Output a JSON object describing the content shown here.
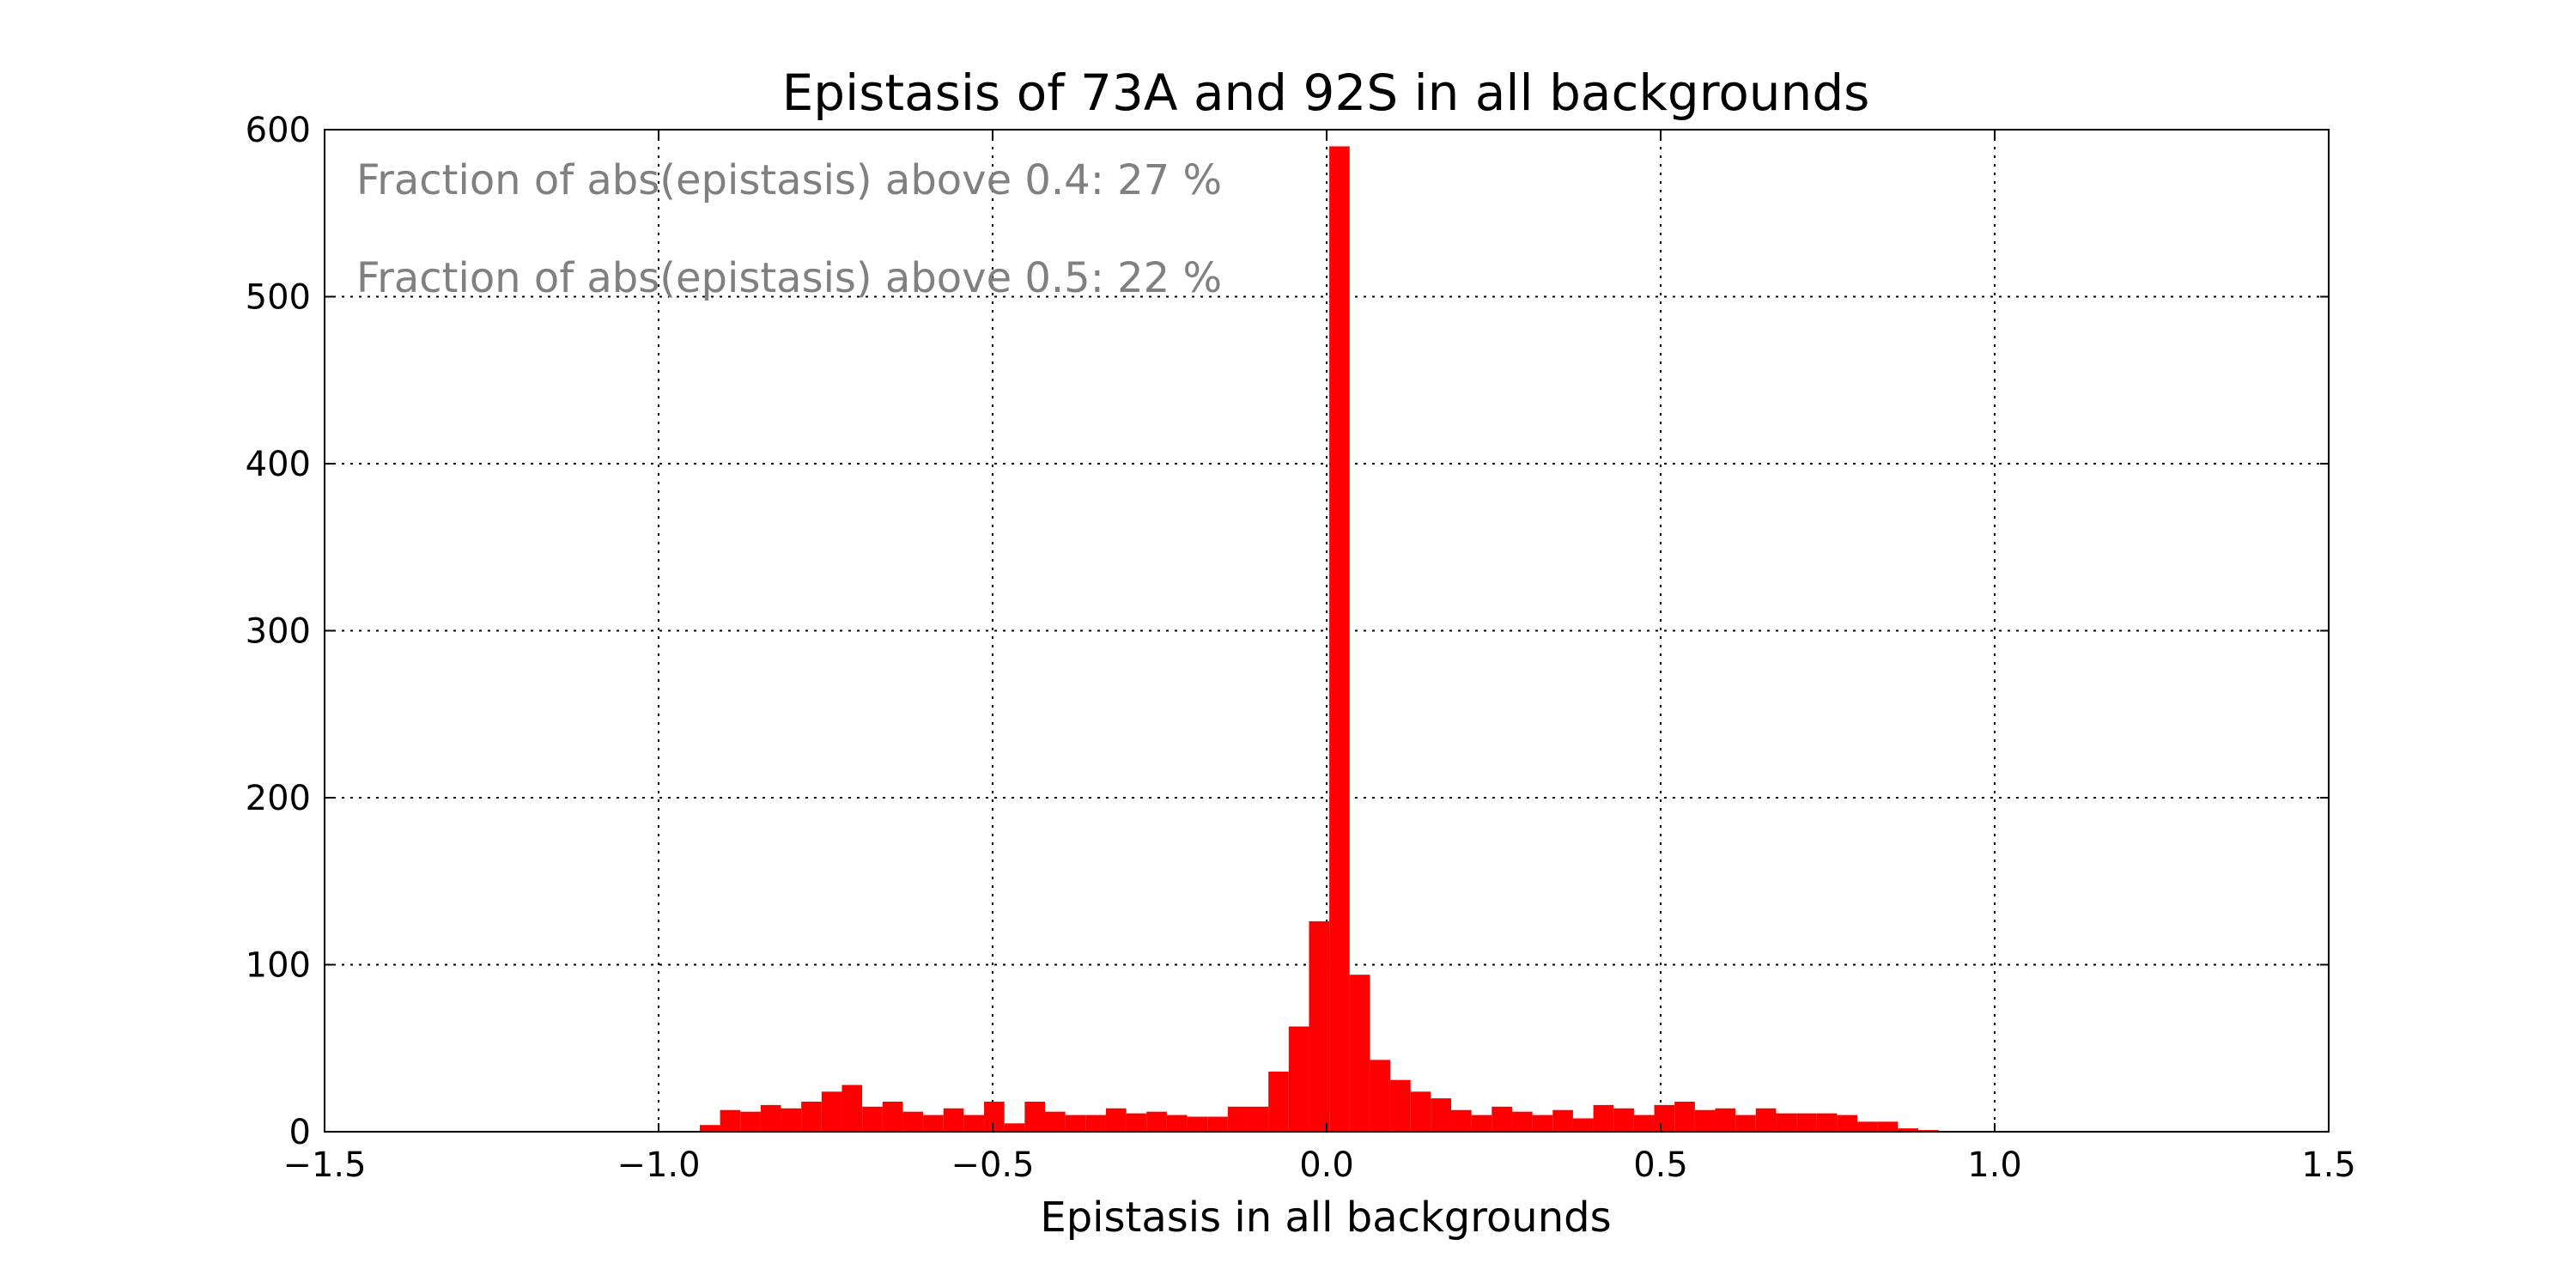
{
  "chart_data": {
    "type": "bar",
    "title": "Epistasis of 73A and 92S in all backgrounds",
    "xlabel": "Epistasis in all backgrounds",
    "ylabel": "",
    "xlim": [
      -1.5,
      1.5
    ],
    "ylim": [
      0,
      600
    ],
    "xticks": [
      -1.5,
      -1.0,
      -0.5,
      0.0,
      0.5,
      1.0,
      1.5
    ],
    "xtick_labels": [
      "−1.5",
      "−1.0",
      "−0.5",
      "0.0",
      "0.5",
      "1.0",
      "1.5"
    ],
    "yticks": [
      0,
      100,
      200,
      300,
      400,
      500,
      600
    ],
    "ytick_labels": [
      "0",
      "100",
      "200",
      "300",
      "400",
      "500",
      "600"
    ],
    "grid": true,
    "color": "#ff0000",
    "bin_start": -0.9384,
    "bin_width": 0.0304,
    "values": [
      4,
      13,
      12,
      16,
      14,
      18,
      24,
      28,
      15,
      18,
      12,
      10,
      14,
      10,
      18,
      5,
      18,
      12,
      10,
      10,
      14,
      11,
      12,
      10,
      9,
      9,
      15,
      15,
      36,
      63,
      126,
      590,
      94,
      43,
      31,
      24,
      20,
      13,
      10,
      15,
      12,
      10,
      13,
      8,
      16,
      14,
      10,
      16,
      18,
      13,
      14,
      10,
      14,
      11,
      11,
      11,
      10,
      6,
      6,
      2,
      1
    ],
    "annotations": [
      "Fraction of abs(epistasis) above 0.4: 27 %",
      "Fraction of abs(epistasis) above 0.5: 22 %"
    ]
  }
}
